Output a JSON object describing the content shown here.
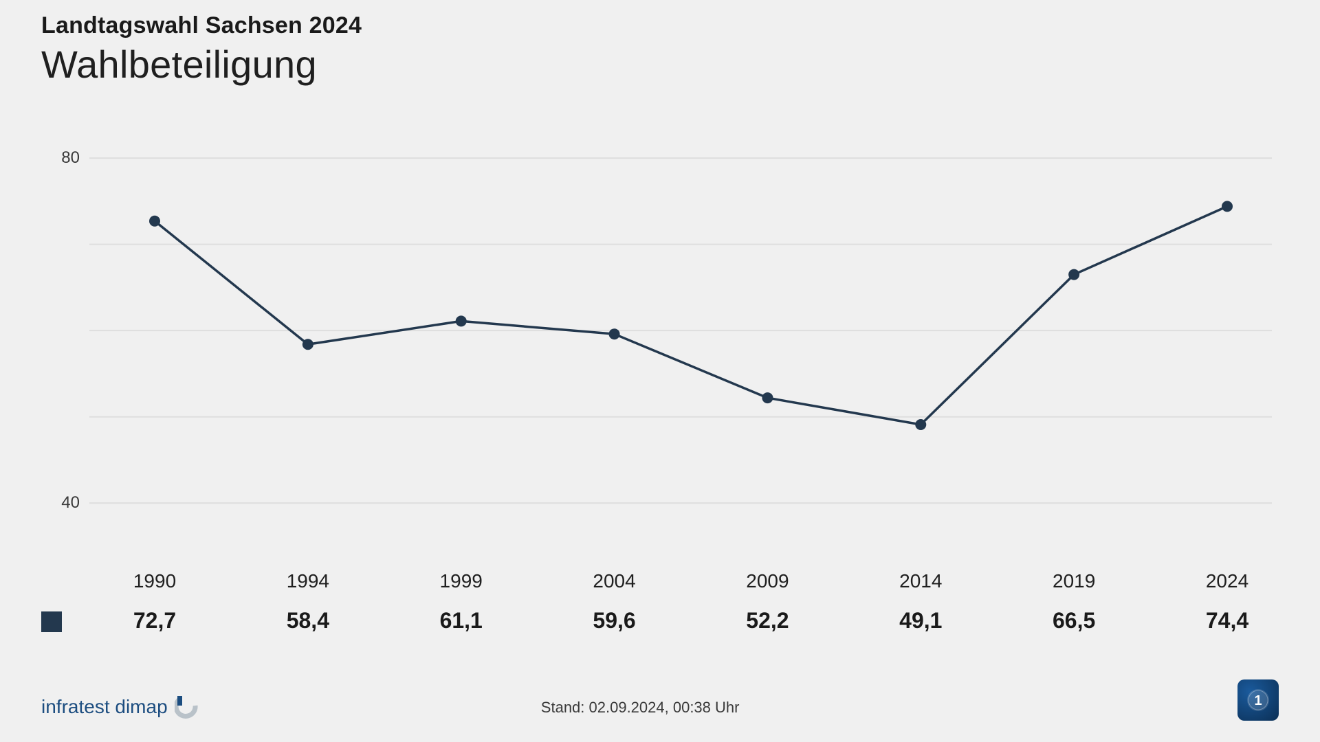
{
  "header": {
    "super_title": "Landtagswahl Sachsen 2024",
    "title": "Wahlbeteiligung"
  },
  "chart": {
    "type": "line",
    "background_color": "#f0f0f0",
    "plot_background": "#f0f0f0",
    "grid_color": "#dedede",
    "grid_stroke_width": 2,
    "line_color": "#23384e",
    "line_width": 3.5,
    "marker_color": "#23384e",
    "marker_radius": 8,
    "xlim": [
      1988,
      2026
    ],
    "ylim": [
      35,
      82
    ],
    "yticks": [
      40,
      80
    ],
    "ytick_fontsize": 24,
    "ytick_color": "#3a3a3a",
    "gridlines_y": [
      40,
      50,
      60,
      70,
      80
    ],
    "x_years": [
      "1990",
      "1994",
      "1999",
      "2004",
      "2009",
      "2014",
      "2019",
      "2024"
    ],
    "x_year_fontsize": 28,
    "x_value_fontsize": 32,
    "x_value_fontweight": 700,
    "values": [
      72.7,
      58.4,
      61.1,
      59.6,
      52.2,
      49.1,
      66.5,
      74.4
    ],
    "value_labels": [
      "72,7",
      "58,4",
      "61,1",
      "59,6",
      "52,2",
      "49,1",
      "66,5",
      "74,4"
    ],
    "legend_color": "#23384e"
  },
  "footer": {
    "source_name": "infratest dimap",
    "source_color": "#1c4d80",
    "timestamp_prefix": "Stand:  ",
    "timestamp_value": "02.09.2024, 00:38 Uhr",
    "broadcaster_logo_label": "ARD / Das Erste"
  }
}
